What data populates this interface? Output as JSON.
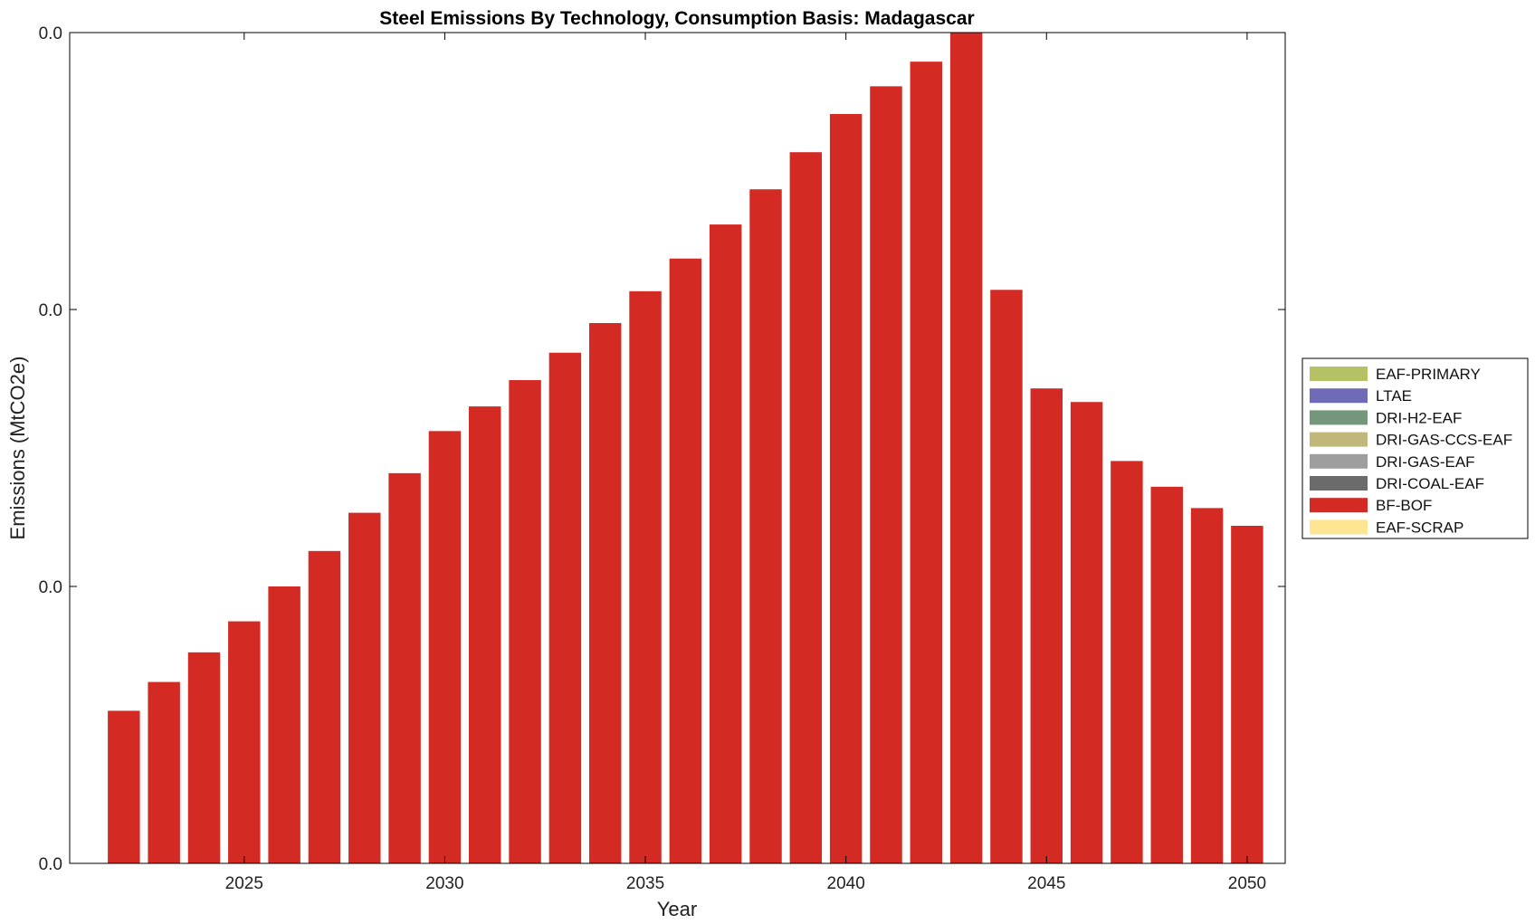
{
  "chart_data": {
    "type": "bar",
    "stacked": true,
    "title": "Steel Emissions By Technology, Consumption Basis: Madagascar",
    "xlabel": "Year",
    "ylabel": "Emissions (MtCO2e)",
    "x": [
      2022,
      2023,
      2024,
      2025,
      2026,
      2027,
      2028,
      2029,
      2030,
      2031,
      2032,
      2033,
      2034,
      2035,
      2036,
      2037,
      2038,
      2039,
      2040,
      2041,
      2042,
      2043,
      2044,
      2045,
      2046,
      2047,
      2048,
      2049,
      2050
    ],
    "xlim": [
      2020.65,
      2050.95
    ],
    "xticks": [
      2025,
      2030,
      2035,
      2040,
      2045,
      2050
    ],
    "ylim": [
      0,
      0.03
    ],
    "yticks": [
      0,
      0.01,
      0.02,
      0.03
    ],
    "ytick_labels": [
      "0.0",
      "0.0",
      "0.0",
      "0.0"
    ],
    "grid": false,
    "legend_position": "right",
    "series": [
      {
        "name": "EAF-PRIMARY",
        "color": "#b5c164",
        "values": [
          0,
          0,
          0,
          0,
          0,
          0,
          0,
          0,
          0,
          0,
          0,
          0,
          0,
          0,
          0,
          0,
          0,
          0,
          0,
          0,
          0,
          0,
          0,
          0,
          0,
          0,
          0,
          0,
          0
        ]
      },
      {
        "name": "LTAE",
        "color": "#6f6bb7",
        "values": [
          0,
          0,
          0,
          0,
          0,
          0,
          0,
          0,
          0,
          0,
          0,
          0,
          0,
          0,
          0,
          0,
          0,
          0,
          0,
          0,
          0,
          0,
          0,
          0,
          0,
          0,
          0,
          0,
          0
        ]
      },
      {
        "name": "DRI-H2-EAF",
        "color": "#74967a",
        "values": [
          0,
          0,
          0,
          0,
          0,
          0,
          0,
          0,
          0,
          0,
          0,
          0,
          0,
          0,
          0,
          0,
          0,
          0,
          0,
          0,
          0,
          0,
          0,
          0,
          0,
          0,
          0,
          0,
          0
        ]
      },
      {
        "name": "DRI-GAS-CCS-EAF",
        "color": "#bfb87a",
        "values": [
          0,
          0,
          0,
          0,
          0,
          0,
          0,
          0,
          0,
          0,
          0,
          0,
          0,
          0,
          0,
          0,
          0,
          0,
          0,
          0,
          0,
          0,
          0,
          0,
          0,
          0,
          0,
          0,
          0
        ]
      },
      {
        "name": "DRI-GAS-EAF",
        "color": "#9e9e9e",
        "values": [
          0,
          0,
          0,
          0,
          0,
          0,
          0,
          0,
          0,
          0,
          0,
          0,
          0,
          0,
          0,
          0,
          0,
          0,
          0,
          0,
          0,
          0,
          0,
          0,
          0,
          0,
          0,
          0,
          0
        ]
      },
      {
        "name": "DRI-COAL-EAF",
        "color": "#6b6b6b",
        "values": [
          0,
          0,
          0,
          0,
          0,
          0,
          0,
          0,
          0,
          0,
          0,
          0,
          0,
          0,
          0,
          0,
          0,
          0,
          0,
          0,
          0,
          0,
          0,
          0,
          0,
          0,
          0,
          0,
          0
        ]
      },
      {
        "name": "BF-BOF",
        "color": "#d42a24",
        "values": [
          0.00551,
          0.00655,
          0.00762,
          0.00874,
          0.01,
          0.01128,
          0.01266,
          0.01409,
          0.01561,
          0.0165,
          0.01745,
          0.01844,
          0.01951,
          0.02066,
          0.02184,
          0.02307,
          0.02434,
          0.02568,
          0.02706,
          0.02806,
          0.02895,
          0.03,
          0.02071,
          0.01715,
          0.01666,
          0.01453,
          0.0136,
          0.01283,
          0.01219
        ]
      },
      {
        "name": "EAF-SCRAP",
        "color": "#fde592",
        "values": [
          0,
          0,
          0,
          0,
          0,
          0,
          0,
          0,
          0,
          0,
          0,
          0,
          0,
          0,
          0,
          0,
          0,
          0,
          0,
          0,
          0,
          0,
          0,
          0,
          0,
          0,
          0,
          0,
          0
        ]
      }
    ]
  }
}
